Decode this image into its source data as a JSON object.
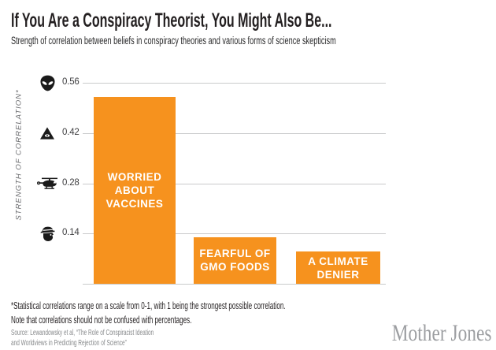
{
  "header": {
    "title": "If You Are a Conspiracy Theorist, You Might Also Be...",
    "subtitle": "Strength of correlation between beliefs in conspiracy theories and various forms of science skepticism"
  },
  "chart_data": {
    "type": "bar",
    "title": "If You Are a Conspiracy Theorist, You Might Also Be...",
    "subtitle": "Strength of correlation between beliefs in conspiracy theories and various forms of science skepticism",
    "categories": [
      "WORRIED ABOUT VACCINES",
      "FEARFUL OF GMO FOODS",
      "A CLIMATE DENIER"
    ],
    "category_lines": [
      [
        "WORRIED",
        "ABOUT",
        "VACCINES"
      ],
      [
        "FEARFUL OF",
        "GMO FOODS"
      ],
      [
        "A CLIMATE",
        "DENIER"
      ]
    ],
    "values": [
      0.52,
      0.13,
      0.09
    ],
    "xlabel": "",
    "ylabel": "STRENGTH OF CORRELATION*",
    "ylim": [
      0,
      0.6
    ],
    "grid": true,
    "legend": false,
    "bar_color": "#F6921E",
    "yticks": [
      {
        "value": 0.14,
        "label": "0.14",
        "icon": "spy-icon"
      },
      {
        "value": 0.28,
        "label": "0.28",
        "icon": "black-helicopter-icon"
      },
      {
        "value": 0.42,
        "label": "0.42",
        "icon": "illuminati-eye-pyramid-icon"
      },
      {
        "value": 0.56,
        "label": "0.56",
        "icon": "alien-icon"
      }
    ]
  },
  "footnote": {
    "line1": "*Statistical correlations range on a scale from 0-1, with 1 being the strongest possible correlation.",
    "line2": "Note that correlations should not be confused with percentages."
  },
  "source": {
    "line1": "Source: Lewandowsky et al, “The Role of Conspiracist Ideation",
    "line2": "and Worldviews in Predicting Rejection of Science”"
  },
  "logo": {
    "text": "Mother Jones"
  },
  "colors": {
    "bar": "#F6921E",
    "grid": "#C9CACB",
    "title": "#231F20",
    "tick_label": "#3E3E40",
    "axis_label": "#6D6E71",
    "source": "#87898B",
    "logo": "#9C9EA1",
    "icon": "#1A1A1A"
  }
}
